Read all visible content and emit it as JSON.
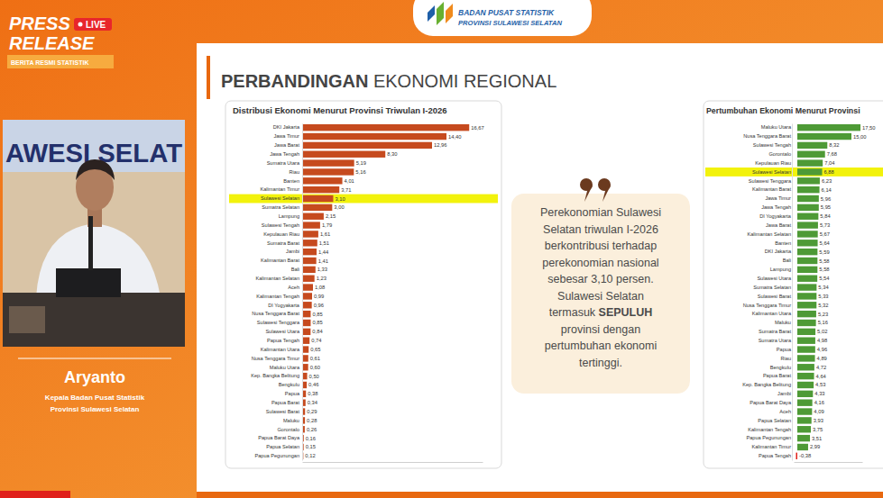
{
  "chart_data": [
    {
      "type": "bar",
      "orientation": "horizontal",
      "title": "Distribusi Ekonomi Menurut Provinsi Triwulan I-2026",
      "categories": [
        "DKI Jakarta",
        "Jawa Timur",
        "Jawa Barat",
        "Jawa Tengah",
        "Sumatra Utara",
        "Riau",
        "Banten",
        "Kalimantan Timur",
        "Sulawesi Selatan",
        "Sumatra Selatan",
        "Lampung",
        "Sulawesi Tengah",
        "Kepulauan Riau",
        "Sumatra Barat",
        "Jambi",
        "Kalimantan Barat",
        "Bali",
        "Kalimantan Selatan",
        "Aceh",
        "Kalimantan Tengah",
        "DI Yogyakarta",
        "Nusa Tenggara Barat",
        "Sulawesi Tenggara",
        "Sulawesi Utara",
        "Papua Tengah",
        "Kalimantan Utara",
        "Nusa Tenggara Timur",
        "Maluku Utara",
        "Kep. Bangka Belitung",
        "Bengkulu",
        "Papua",
        "Papua Barat",
        "Sulawesi Barat",
        "Maluku",
        "Gorontalo",
        "Papua Barat Daya",
        "Papua Selatan",
        "Papua Pegunungan"
      ],
      "values": [
        16.67,
        14.4,
        12.96,
        8.3,
        5.19,
        5.16,
        4.01,
        3.71,
        3.1,
        3.0,
        2.15,
        1.79,
        1.61,
        1.51,
        1.44,
        1.41,
        1.33,
        1.23,
        1.08,
        0.99,
        0.96,
        0.85,
        0.85,
        0.84,
        0.74,
        0.65,
        0.61,
        0.6,
        0.5,
        0.46,
        0.38,
        0.34,
        0.29,
        0.28,
        0.26,
        0.16,
        0.15,
        0.12
      ],
      "value_labels": [
        "16,67",
        "14,40",
        "12,96",
        "8,30",
        "5,19",
        "5,16",
        "4,01",
        "3,71",
        "3,10",
        "3,00",
        "2,15",
        "1,79",
        "1,61",
        "1,51",
        "1,44",
        "1,41",
        "1,33",
        "1,23",
        "1,08",
        "0,99",
        "0,96",
        "0,85",
        "0,85",
        "0,84",
        "0,74",
        "0,65",
        "0,61",
        "0,60",
        "0,50",
        "0,46",
        "0,38",
        "0,34",
        "0,29",
        "0,28",
        "0,26",
        "0,16",
        "0,15",
        "0,12"
      ],
      "color": "#c64a1e",
      "highlight": "Sulawesi Selatan",
      "xlim": [
        0,
        18
      ],
      "xticks": [],
      "grid": false,
      "data_labels": true,
      "tick_labels": "y"
    },
    {
      "type": "bar",
      "orientation": "horizontal",
      "title": "Pertumbuhan Ekonomi Menurut Provinsi",
      "categories": [
        "Maluku Utara",
        "Nusa Tenggara Barat",
        "Sulawesi Tengah",
        "Gorontalo",
        "Kepulauan Riau",
        "Sulawesi Selatan",
        "Sulawesi Tenggara",
        "Kalimantan Barat",
        "Jawa Timur",
        "Jawa Tengah",
        "DI Yogyakarta",
        "Jawa Barat",
        "Kalimantan Selatan",
        "Banten",
        "DKI Jakarta",
        "Bali",
        "Lampung",
        "Sulawesi Utara",
        "Sumatra Selatan",
        "Sulawesi Barat",
        "Nusa Tenggara Timur",
        "Kalimantan Utara",
        "Maluku",
        "Sumatra Barat",
        "Sumatra Utara",
        "Papua",
        "Riau",
        "Bengkulu",
        "Papua Barat",
        "Kep. Bangka Belitung",
        "Jambi",
        "Papua Barat Daya",
        "Aceh",
        "Papua Selatan",
        "Kalimantan Tengah",
        "Papua Pegunungan",
        "Kalimantan Timur",
        "Papua Tengah"
      ],
      "values": [
        17.5,
        15.0,
        8.32,
        7.68,
        7.04,
        6.88,
        6.23,
        6.14,
        5.96,
        5.95,
        5.84,
        5.73,
        5.67,
        5.64,
        5.59,
        5.58,
        5.58,
        5.54,
        5.34,
        5.33,
        5.32,
        5.23,
        5.16,
        5.02,
        4.98,
        4.96,
        4.89,
        4.72,
        4.64,
        4.53,
        4.33,
        4.16,
        4.09,
        3.93,
        3.75,
        3.51,
        2.99,
        -0.38
      ],
      "value_labels": [
        "17,50",
        "15,00",
        "8,32",
        "7,68",
        "7,04",
        "6,88",
        "6,23",
        "6,14",
        "5,96",
        "5,95",
        "5,84",
        "5,73",
        "5,67",
        "5,64",
        "5,59",
        "5,58",
        "5,58",
        "5,54",
        "5,34",
        "5,33",
        "5,32",
        "5,23",
        "5,16",
        "5,02",
        "4,98",
        "4,96",
        "4,89",
        "4,72",
        "4,64",
        "4,53",
        "4,33",
        "4,16",
        "4,09",
        "3,93",
        "3,75",
        "3,51",
        "2,99",
        "-0,38"
      ],
      "colors": [
        "#4e9a36",
        "#4e9a36",
        "#4e9a36",
        "#4e9a36",
        "#4e9a36",
        "#4e9a36",
        "#4e9a36",
        "#4e9a36",
        "#4e9a36",
        "#4e9a36",
        "#4e9a36",
        "#4e9a36",
        "#4e9a36",
        "#4e9a36",
        "#4e9a36",
        "#4e9a36",
        "#4e9a36",
        "#4e9a36",
        "#4e9a36",
        "#4e9a36",
        "#4e9a36",
        "#4e9a36",
        "#4e9a36",
        "#4e9a36",
        "#4e9a36",
        "#4e9a36",
        "#4e9a36",
        "#4e9a36",
        "#4e9a36",
        "#4e9a36",
        "#4e9a36",
        "#4e9a36",
        "#4e9a36",
        "#4e9a36",
        "#4e9a36",
        "#4e9a36",
        "#4e9a36",
        "#e3231c"
      ],
      "highlight": "Sulawesi Selatan",
      "xlim": [
        -1,
        18
      ],
      "xticks": [],
      "grid": false,
      "data_labels": true,
      "tick_labels": "y"
    }
  ],
  "page": {
    "badge": {
      "press": "PRESS",
      "release": "RELEASE",
      "live": "LIVE",
      "subtitle": "BERITA RESMI STATISTIK"
    },
    "logo": {
      "line1": "BADAN PUSAT STATISTIK",
      "line2": "PROVINSI SULAWESI SELATAN"
    },
    "slide_title": [
      "PERBANDINGAN",
      "EKONOMI REGIONAL"
    ],
    "quote": [
      [
        {
          "text": "Perekonomian Sulawesi"
        }
      ],
      [
        {
          "text": "Selatan triwulan I-2026"
        }
      ],
      [
        {
          "text": "berkontribusi terhadap"
        }
      ],
      [
        {
          "text": "perekonomian nasional"
        }
      ],
      [
        {
          "text": "sebesar 3,10 persen."
        }
      ],
      [
        {
          "text": "Sulawesi Selatan"
        }
      ],
      [
        {
          "text": "termasuk "
        },
        {
          "text": "SEPULUH",
          "bold": true
        }
      ],
      [
        {
          "text": "provinsi dengan"
        }
      ],
      [
        {
          "text": "pertumbuhan ekonomi"
        }
      ],
      [
        {
          "text": "tertinggi."
        }
      ]
    ],
    "presenter": {
      "name": "Aryanto",
      "role": [
        "Kepala Badan Pusat Statistik",
        "Provinsi Sulawesi Selatan"
      ]
    },
    "photo_text": "AWESI SELAT"
  }
}
